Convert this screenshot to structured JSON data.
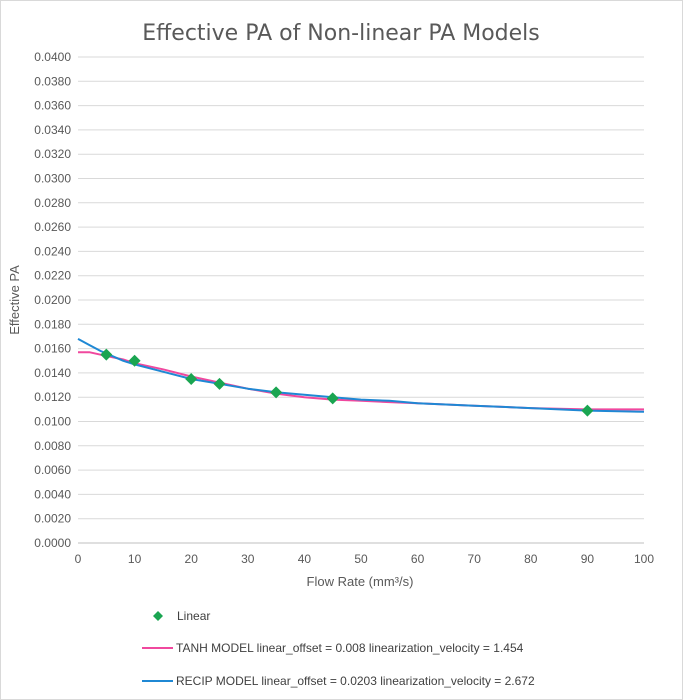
{
  "chart_data": {
    "type": "line",
    "title": "Effective PA of Non-linear PA Models",
    "xlabel": "Flow Rate (mm³/s)",
    "ylabel": "Effective PA",
    "xlim": [
      0,
      100
    ],
    "ylim": [
      0,
      0.04
    ],
    "x_ticks": [
      "0",
      "10",
      "20",
      "30",
      "40",
      "50",
      "60",
      "70",
      "80",
      "90",
      "100"
    ],
    "y_ticks": [
      "0.0000",
      "0.0020",
      "0.0040",
      "0.0060",
      "0.0080",
      "0.0100",
      "0.0120",
      "0.0140",
      "0.0160",
      "0.0180",
      "0.0200",
      "0.0220",
      "0.0240",
      "0.0260",
      "0.0280",
      "0.0300",
      "0.0320",
      "0.0340",
      "0.0360",
      "0.0380",
      "0.0400"
    ],
    "grid": "horizontal",
    "legend_position": "bottom",
    "series": [
      {
        "name": "Linear",
        "kind": "scatter",
        "marker": "diamond",
        "color": "#1aa551",
        "points": [
          [
            5,
            0.0155
          ],
          [
            10,
            0.015
          ],
          [
            20,
            0.0135
          ],
          [
            25,
            0.0131
          ],
          [
            35,
            0.0124
          ],
          [
            45,
            0.0119
          ],
          [
            90,
            0.0109
          ]
        ]
      },
      {
        "name": "TANH MODEL linear_offset = 0.008 linearization_velocity = 1.454",
        "kind": "line",
        "color": "#f0489e",
        "points": [
          [
            0,
            0.0157
          ],
          [
            2,
            0.0157
          ],
          [
            4,
            0.0155
          ],
          [
            6,
            0.0153
          ],
          [
            8,
            0.0151
          ],
          [
            10,
            0.0148
          ],
          [
            15,
            0.0143
          ],
          [
            20,
            0.0137
          ],
          [
            25,
            0.0132
          ],
          [
            30,
            0.0127
          ],
          [
            35,
            0.0123
          ],
          [
            40,
            0.012
          ],
          [
            45,
            0.0118
          ],
          [
            50,
            0.0117
          ],
          [
            55,
            0.0116
          ],
          [
            60,
            0.0115
          ],
          [
            70,
            0.0113
          ],
          [
            80,
            0.0111
          ],
          [
            90,
            0.011
          ],
          [
            100,
            0.011
          ]
        ]
      },
      {
        "name": "RECIP MODEL linear_offset = 0.0203 linearization_velocity = 2.672",
        "kind": "line",
        "color": "#1f88d4",
        "points": [
          [
            0,
            0.0168
          ],
          [
            2,
            0.0163
          ],
          [
            4,
            0.0158
          ],
          [
            6,
            0.0154
          ],
          [
            8,
            0.015
          ],
          [
            10,
            0.0147
          ],
          [
            15,
            0.0141
          ],
          [
            20,
            0.0135
          ],
          [
            25,
            0.0131
          ],
          [
            30,
            0.0127
          ],
          [
            35,
            0.0124
          ],
          [
            40,
            0.0122
          ],
          [
            45,
            0.012
          ],
          [
            50,
            0.0118
          ],
          [
            55,
            0.0117
          ],
          [
            60,
            0.0115
          ],
          [
            70,
            0.0113
          ],
          [
            80,
            0.0111
          ],
          [
            90,
            0.0109
          ],
          [
            100,
            0.0108
          ]
        ]
      }
    ]
  }
}
